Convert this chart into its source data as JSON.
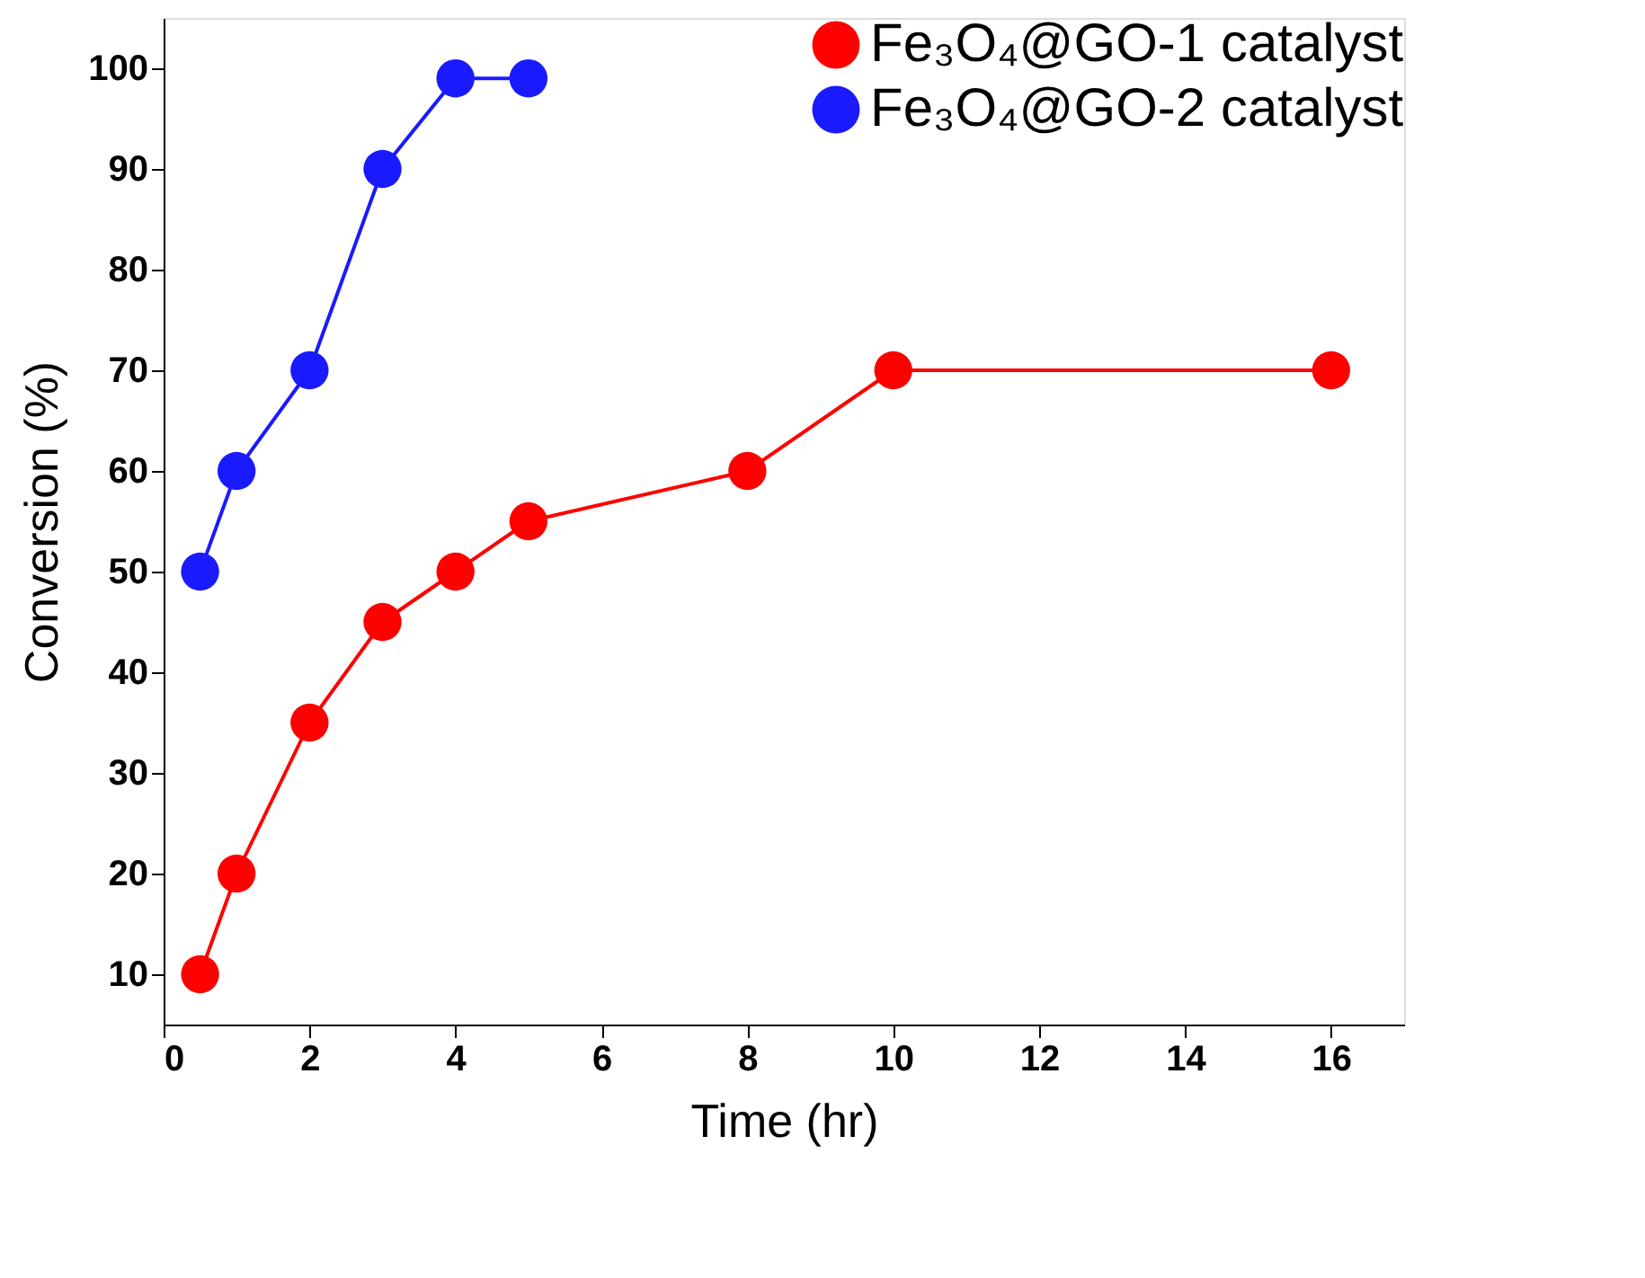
{
  "chart_data": {
    "type": "line",
    "xlabel": "Time (hr)",
    "ylabel": "Conversion (%)",
    "xlim": [
      0,
      17
    ],
    "xticks": [
      0,
      2,
      4,
      6,
      8,
      10,
      12,
      14,
      16
    ],
    "ylim": [
      5,
      105
    ],
    "yticks": [
      10,
      20,
      30,
      40,
      50,
      60,
      70,
      80,
      90,
      100
    ],
    "grid": false,
    "legend": "top right",
    "marker": "circle",
    "line_style": "solid",
    "series": [
      {
        "name": "Fe₃O₄@GO-1 catalyst",
        "color": "#ff0000",
        "x": [
          0.5,
          1,
          2,
          3,
          4,
          5,
          8,
          10,
          16
        ],
        "values": [
          10,
          20,
          35,
          45,
          50,
          55,
          60,
          70,
          70
        ]
      },
      {
        "name": "Fe₃O₄@GO-2 catalyst",
        "color": "#1a1aff",
        "x": [
          0.5,
          1,
          2,
          3,
          4,
          5
        ],
        "values": [
          50,
          60,
          70,
          90,
          99,
          99
        ]
      }
    ]
  }
}
